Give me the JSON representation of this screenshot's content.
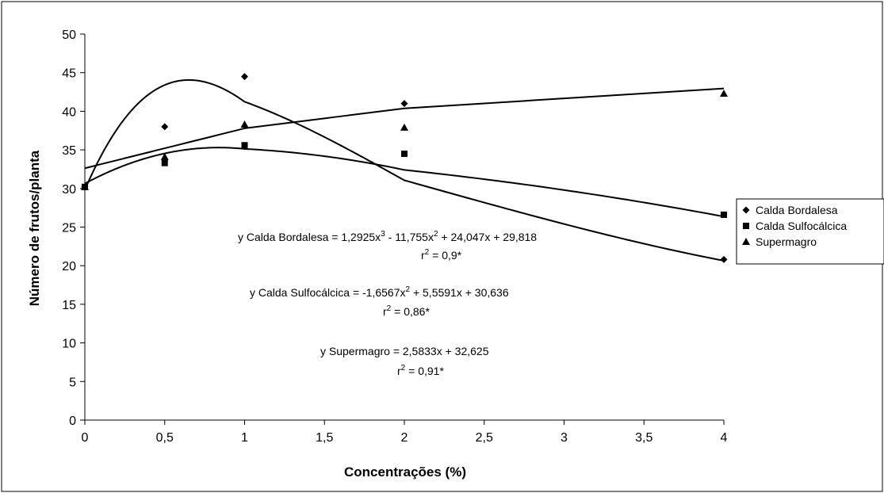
{
  "chart_data": {
    "type": "scatter",
    "xlabel": "Concentrações (%)",
    "ylabel": "Número de frutos/planta",
    "x_categories": [
      "0",
      "0,5",
      "1",
      "1,5",
      "2",
      "2,5",
      "3",
      "3,5",
      "4"
    ],
    "x_positions": [
      0,
      0.5,
      1,
      2,
      4
    ],
    "ylim": [
      0,
      50
    ],
    "y_ticks": [
      "0",
      "5",
      "10",
      "15",
      "20",
      "25",
      "30",
      "35",
      "40",
      "45",
      "50"
    ],
    "grid": false,
    "legend_position": "right",
    "series": [
      {
        "name": "Calda Bordalesa",
        "marker": "diamond",
        "x": [
          0,
          0.5,
          1,
          2,
          4
        ],
        "values": [
          30.2,
          38.0,
          44.5,
          41.0,
          20.8
        ],
        "trendline": {
          "type": "poly3",
          "coefficients": [
            29.818,
            24.047,
            -11.755,
            1.2925
          ]
        }
      },
      {
        "name": "Calda Sulfocálcica",
        "marker": "square",
        "x": [
          0,
          0.5,
          1,
          2,
          4
        ],
        "values": [
          30.2,
          33.3,
          35.6,
          34.5,
          26.6
        ],
        "trendline": {
          "type": "poly2",
          "coefficients": [
            30.636,
            5.5591,
            -1.6567
          ]
        }
      },
      {
        "name": "Supermagro",
        "marker": "triangle",
        "x": [
          0,
          0.5,
          1,
          2,
          4
        ],
        "values": [
          30.2,
          34.1,
          38.3,
          37.9,
          42.3
        ],
        "trendline": {
          "type": "linear",
          "coefficients": [
            32.625,
            2.5833
          ]
        }
      }
    ],
    "annotations": {
      "bordalesa": {
        "eq_prefix": "y Calda Bordalesa = 1,2925x",
        "eq_exp1": "3",
        "eq_mid": " - 11,755x",
        "eq_exp2": "2",
        "eq_suffix": " + 24,047x + 29,818",
        "r_prefix": "r",
        "r_exp": "2",
        "r_value": " = 0,9*"
      },
      "sulfocalcica": {
        "eq_prefix": "y Calda Sulfocálcica = -1,6567x",
        "eq_exp": "2",
        "eq_suffix": " + 5,5591x + 30,636",
        "r_prefix": "r",
        "r_exp": "2",
        "r_value": " = 0,86*"
      },
      "supermagro": {
        "eq": "y Supermagro = 2,5833x + 32,625",
        "r_prefix": "r",
        "r_exp": "2",
        "r_value": " = 0,91*"
      }
    }
  }
}
